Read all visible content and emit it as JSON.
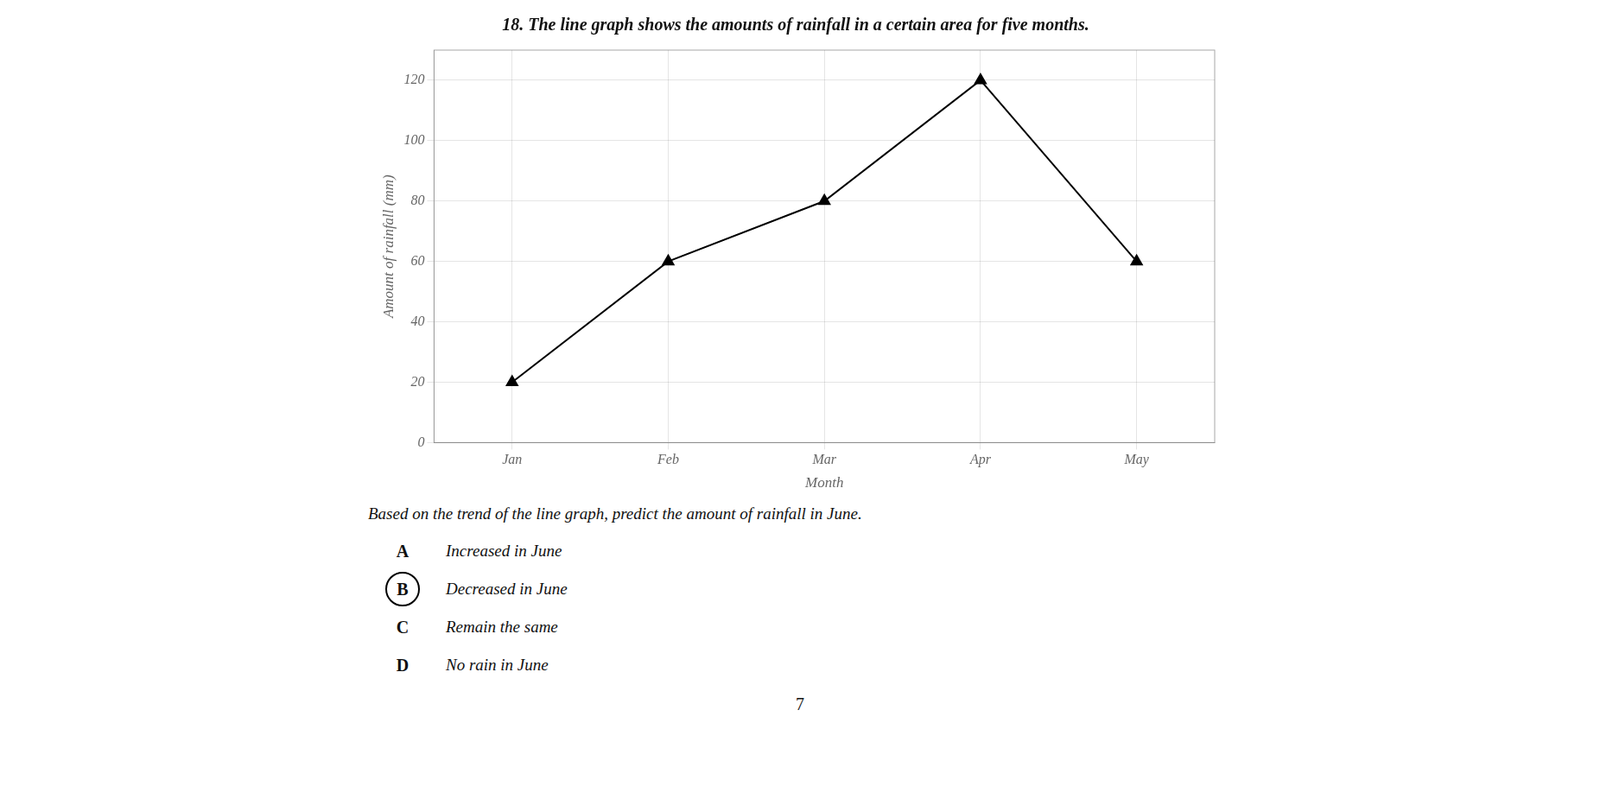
{
  "chart_data": {
    "type": "line",
    "title": "18. The line graph shows the amounts of rainfall in a certain area for five months.",
    "x_label": "Month",
    "y_label": "Amount of rainfall (mm)",
    "categories": [
      "Jan",
      "Feb",
      "Mar",
      "Apr",
      "May"
    ],
    "values": [
      20,
      60,
      80,
      120,
      60
    ],
    "color": "#000000",
    "marker": "triangle",
    "ylim": [
      0,
      130
    ],
    "yticks": [
      0,
      20,
      40,
      60,
      80,
      100,
      120
    ],
    "grid": true,
    "question": "Based on the trend of the line graph, predict the amount of rainfall in June.",
    "options": [
      {
        "label": "A",
        "text": "Increased in June"
      },
      {
        "label": "B",
        "text": "Decreased in June"
      },
      {
        "label": "C",
        "text": "Remain the same"
      },
      {
        "label": "D",
        "text": "No rain in June"
      }
    ],
    "answer": "B",
    "page_number": "7"
  }
}
